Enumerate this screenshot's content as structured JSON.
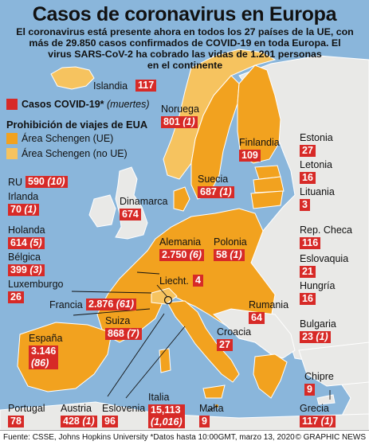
{
  "title": "Casos de coronavirus en Europa",
  "subtitle_lines": [
    "El coronavirus está presente ahora en todos los 27 países de la UE, con",
    "más de 29.850 casos confirmados de COVID-19 en toda Europa. El",
    "virus SARS-CoV-2 ha cobrado las vidas de 1.201 personas",
    "en el continente"
  ],
  "legend": {
    "cases_label": "Casos COVID-19*",
    "deaths_label": "(muertes)",
    "ban_title": "Prohibición de viajes de EUA",
    "schengen_eu": "Área Schengen (UE)",
    "schengen_non_eu": "Área Schengen (no UE)"
  },
  "colors": {
    "schengen_eu": "#f2a21f",
    "schengen_non_eu": "#f6c35f",
    "other": "#e9e9e7",
    "sea": "#8ab6db",
    "case_box": "#d72a27"
  },
  "countries": [
    {
      "name": "Islandia",
      "cases": "117",
      "deaths": ""
    },
    {
      "name": "Noruega",
      "cases": "801",
      "deaths": "(1)"
    },
    {
      "name": "Finlandia",
      "cases": "109",
      "deaths": ""
    },
    {
      "name": "Estonia",
      "cases": "27",
      "deaths": ""
    },
    {
      "name": "Letonia",
      "cases": "16",
      "deaths": ""
    },
    {
      "name": "Suecia",
      "cases": "687",
      "deaths": "(1)"
    },
    {
      "name": "Lituania",
      "cases": "3",
      "deaths": ""
    },
    {
      "name": "RU",
      "cases": "590",
      "deaths": "(10)"
    },
    {
      "name": "Irlanda",
      "cases": "70",
      "deaths": "(1)"
    },
    {
      "name": "Dinamarca",
      "cases": "674",
      "deaths": ""
    },
    {
      "name": "Holanda",
      "cases": "614",
      "deaths": "(5)"
    },
    {
      "name": "Alemania",
      "cases": "2.750",
      "deaths": "(6)"
    },
    {
      "name": "Polonia",
      "cases": "58",
      "deaths": "(1)"
    },
    {
      "name": "Bélgica",
      "cases": "399",
      "deaths": "(3)"
    },
    {
      "name": "Rep. Checa",
      "cases": "116",
      "deaths": ""
    },
    {
      "name": "Luxemburgo",
      "cases": "26",
      "deaths": ""
    },
    {
      "name": "Liecht.",
      "cases": "4",
      "deaths": ""
    },
    {
      "name": "Eslovaquia",
      "cases": "21",
      "deaths": ""
    },
    {
      "name": "Francia",
      "cases": "2.876",
      "deaths": "(61)"
    },
    {
      "name": "Hungría",
      "cases": "16",
      "deaths": ""
    },
    {
      "name": "Suiza",
      "cases": "868",
      "deaths": "(7)"
    },
    {
      "name": "Rumania",
      "cases": "64",
      "deaths": ""
    },
    {
      "name": "España",
      "cases": "3.146",
      "deaths": "(86)"
    },
    {
      "name": "Croacia",
      "cases": "27",
      "deaths": ""
    },
    {
      "name": "Bulgaria",
      "cases": "23",
      "deaths": "(1)"
    },
    {
      "name": "Chipre",
      "cases": "9",
      "deaths": ""
    },
    {
      "name": "Portugal",
      "cases": "78",
      "deaths": ""
    },
    {
      "name": "Austria",
      "cases": "428",
      "deaths": "(1)"
    },
    {
      "name": "Eslovenia",
      "cases": "96",
      "deaths": ""
    },
    {
      "name": "Italia",
      "cases": "15,113",
      "deaths": "(1,016)"
    },
    {
      "name": "Malta",
      "cases": "9",
      "deaths": ""
    },
    {
      "name": "Grecia",
      "cases": "117",
      "deaths": "(1)"
    }
  ],
  "footer": {
    "source": "Fuente: CSSE, Johns Hopkins University *Datos hasta 10:00GMT, marzo 13, 2020",
    "credit": "© GRAPHIC NEWS"
  }
}
